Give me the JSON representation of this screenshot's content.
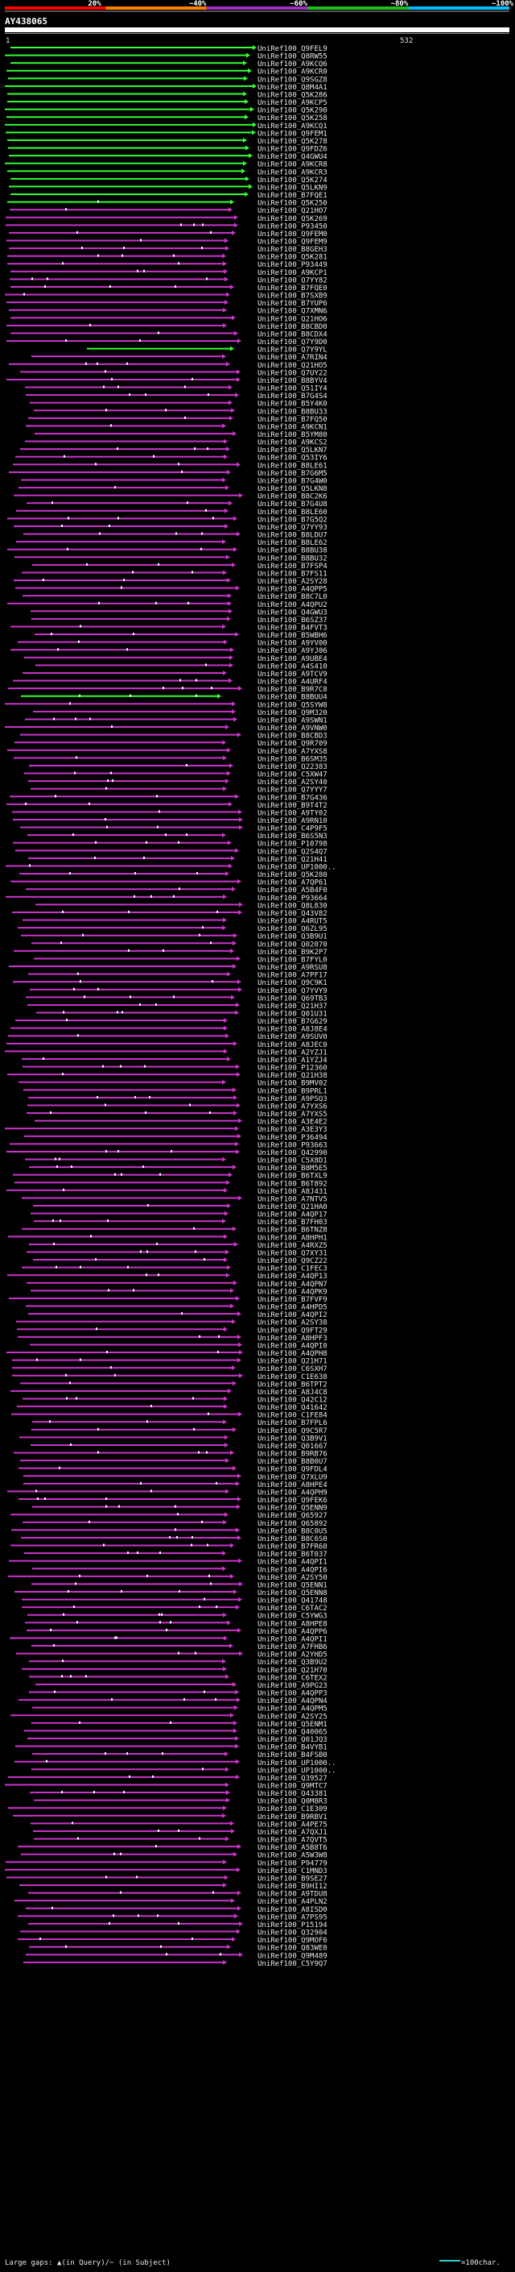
{
  "query": {
    "id": "AY438065",
    "start_label": "1",
    "end_label": "532"
  },
  "identity_scale": {
    "labels": [
      "20%",
      "~40%",
      "~60%",
      "~80%",
      "~100%"
    ],
    "colors": [
      "#ff0000",
      "#ff7f00",
      "#9f2fbf",
      "#1fbf1f",
      "#00bfff"
    ]
  },
  "alignment_colors": {
    "green": "#33ff33",
    "magenta": "#cc33cc",
    "white": "#ffffff"
  },
  "hits": [
    "UniRef100_Q9FEL9",
    "UniRef100_Q8RW55",
    "UniRef100_A9KCQ6",
    "UniRef100_A9KCR0",
    "UniRef100_Q9SGZ8",
    "UniRef100_Q8M4A1",
    "UniRef100_Q5K286",
    "UniRef100_A9KCP5",
    "UniRef100_Q5K290",
    "UniRef100_Q5K258",
    "UniRef100_A9KCQ1",
    "UniRef100_Q9FEM1",
    "UniRef100_Q5K278",
    "UniRef100_Q9FDZ6",
    "UniRef100_Q4GWU4",
    "UniRef100_A9KCR8",
    "UniRef100_A9KCR3",
    "UniRef100_Q5K274",
    "UniRef100_Q5LKN9",
    "UniRef100_B7FQE1",
    "UniRef100_Q5K250",
    "UniRef100_Q21HO7",
    "UniRef100_Q5K269",
    "UniRef100_P93450",
    "UniRef100_Q9FEM0",
    "UniRef100_Q9FEM9",
    "UniRef100_B8GEH3",
    "UniRef100_Q5K281",
    "UniRef100_P93449",
    "UniRef100_A9KCP1",
    "UniRef100_Q7YY82",
    "UniRef100_B7FQE0",
    "UniRef100_B7SXB9",
    "UniRef100_B7YUP6",
    "UniRef100_Q7XMN6",
    "UniRef100_Q21HO6",
    "UniRef100_B8CBD0",
    "UniRef100_B8CDX4",
    "UniRef100_Q7Y9D0",
    "UniRef100_Q7Y9YL",
    "UniRef100_A7RIN4",
    "UniRef100_Q21HO5",
    "UniRef100_Q7UY22",
    "UniRef100_B8BYV4",
    "UniRef100_Q51IY4",
    "UniRef100_B7G4S4",
    "UniRef100_B5Y4K0",
    "UniRef100_B8BU33",
    "UniRef100_B7FQ50",
    "UniRef100_A9KCN1",
    "UniRef100_B5YM80",
    "UniRef100_A9KCS2",
    "UniRef100_Q5LKN7",
    "UniRef100_Q53IY6",
    "UniRef100_B8LE61",
    "UniRef100_B7G6M5",
    "UniRef100_B7G4W0",
    "UniRef100_Q5LKN8",
    "UniRef100_B8C2K6",
    "UniRef100_B7G4U8",
    "UniRef100_B8LE60",
    "UniRef100_B7G5Q2",
    "UniRef100_Q7YY93",
    "UniRef100_B8LDU7",
    "UniRef100_B8LE62",
    "UniRef100_B8BU38",
    "UniRef100_B8BU32",
    "UniRef100_B7FSP4",
    "UniRef100_B7FS11",
    "UniRef100_A2SY28",
    "UniRef100_A4QPP5",
    "UniRef100_B8C7L0",
    "UniRef100_A4QPU2",
    "UniRef100_Q4GWU3",
    "UniRef100_B6SZ37",
    "UniRef100_B4FVT3",
    "UniRef100_B5WBH6",
    "UniRef100_A9YV00",
    "UniRef100_A9YJ06",
    "UniRef100_A9UBE4",
    "UniRef100_A4S410",
    "UniRef100_A9TCV9",
    "UniRef100_A4URF4",
    "UniRef100_B9R7C8",
    "UniRef100_B8BUU4",
    "UniRef100_Q5SYW8",
    "UniRef100_Q9M320",
    "UniRef100_A9SWN1",
    "UniRef100_A9VNW0",
    "UniRef100_B8CBD3",
    "UniRef100_Q9R709",
    "UniRef100_A7YXS8",
    "UniRef100_B6SM35",
    "UniRef100_Q22383",
    "UniRef100_C5XW47",
    "UniRef100_A2SY40",
    "UniRef100_Q7YYY7",
    "UniRef100_B7G436",
    "UniRef100_B9T4T2",
    "UniRef100_A9TY02",
    "UniRef100_A9RN10",
    "UniRef100_C4P9F5",
    "UniRef100_B6S5N3",
    "UniRef100_P10798",
    "UniRef100_Q2S4Q7",
    "UniRef100_Q21H41",
    "UniRef100_UP1000..",
    "UniRef100_Q5K280",
    "UniRef100_A7QP61",
    "UniRef100_A5B4F0",
    "UniRef100_P93664",
    "UniRef100_Q8L830",
    "UniRef100_Q43V82",
    "UniRef100_A4RUT5",
    "UniRef100_Q6ZL95",
    "UniRef100_Q3B9U1",
    "UniRef100_Q02070",
    "UniRef100_B9K2P7",
    "UniRef100_B7FYL0",
    "UniRef100_A9RSU8",
    "UniRef100_A7PF17",
    "UniRef100_Q9C9K1",
    "UniRef100_Q7YVY9",
    "UniRef100_Q69TB3",
    "UniRef100_Q21H37",
    "UniRef100_Q01U31",
    "UniRef100_B7G629",
    "UniRef100_A8J8E4",
    "UniRef100_A9SUV0",
    "UniRef100_A8JEC0",
    "UniRef100_A2YZJ1",
    "UniRef100_A1YZJ4",
    "UniRef100_P12360",
    "UniRef100_Q21H38",
    "UniRef100_B9MV02",
    "UniRef100_B9PRL1",
    "UniRef100_A9PSQ3",
    "UniRef100_A7YXS6",
    "UniRef100_A7YXS5",
    "UniRef100_A3E4E2",
    "UniRef100_A3E3Y3",
    "UniRef100_P36494",
    "UniRef100_P93663",
    "UniRef100_Q42990",
    "UniRef100_C5X8D1",
    "UniRef100_B8M5E5",
    "UniRef100_B6TXL9",
    "UniRef100_B6T892",
    "UniRef100_A8J431",
    "UniRef100_A7NTV5",
    "UniRef100_Q21HA0",
    "UniRef100_A4QP17",
    "UniRef100_B7FH03",
    "UniRef100_B6TNZ8",
    "UniRef100_A8HPH1",
    "UniRef100_A4RXZ5",
    "UniRef100_Q7XY31",
    "UniRef100_Q9CZ22",
    "UniRef100_C1FEC3",
    "UniRef100_A4QP13",
    "UniRef100_A4QPN7",
    "UniRef100_A4QPK9",
    "UniRef100_B7FVF9",
    "UniRef100_A4HPD5",
    "UniRef100_A4QPI2",
    "UniRef100_A2SY38",
    "UniRef100_Q9FT29",
    "UniRef100_A8HPF3",
    "UniRef100_A4QPI0",
    "UniRef100_A4QPH8",
    "UniRef100_Q21H71",
    "UniRef100_C6SXH7",
    "UniRef100_C1E638",
    "UniRef100_B6TPT2",
    "UniRef100_A8J4C8",
    "UniRef100_Q42C12",
    "UniRef100_Q41642",
    "UniRef100_C1FE84",
    "UniRef100_B7FPL6",
    "UniRef100_Q9C5R7",
    "UniRef100_Q3B9V1",
    "UniRef100_Q01667",
    "UniRef100_B9RB76",
    "UniRef100_B8B0U7",
    "UniRef100_Q9FDL4",
    "UniRef100_Q7XLU9",
    "UniRef100_A8HPE4",
    "UniRef100_A4QPH9",
    "UniRef100_Q9FEK6",
    "UniRef100_Q5ENN9",
    "UniRef100_Q65927",
    "UniRef100_Q65892",
    "UniRef100_B8C0U5",
    "UniRef100_B8C6S0",
    "UniRef100_B7FR60",
    "UniRef100_B6T037",
    "UniRef100_A4QPI1",
    "UniRef100_A4QPI6",
    "UniRef100_A2SY50",
    "UniRef100_Q5ENN1",
    "UniRef100_Q5ENN8",
    "UniRef100_Q41748",
    "UniRef100_C6TAC2",
    "UniRef100_C5YWG3",
    "UniRef100_A8HPE8",
    "UniRef100_A4QPP6",
    "UniRef100_A4QPI1",
    "UniRef100_A7FHB6",
    "UniRef100_A2YHD5",
    "UniRef100_Q3B9U2",
    "UniRef100_Q21H70",
    "UniRef100_C6TEX2",
    "UniRef100_A9PG23",
    "UniRef100_A4QPP3",
    "UniRef100_A4QPN4",
    "UniRef100_A4QPM5",
    "UniRef100_A2SY25",
    "UniRef100_Q5ENM1",
    "UniRef100_Q40065",
    "UniRef100_Q01JQ3",
    "UniRef100_B4VYB1",
    "UniRef100_B4FSB0",
    "UniRef100_UP1000..",
    "UniRef100_UP1000..",
    "UniRef100_Q39527",
    "UniRef100_Q9MTC7",
    "UniRef100_Q43381",
    "UniRef100_Q0M8R3",
    "UniRef100_C1E309",
    "UniRef100_B9RBV1",
    "UniRef100_A4PE75",
    "UniRef100_A7QXJ1",
    "UniRef100_A7QVT5",
    "UniRef100_A5B8T6",
    "UniRef100_A5W3W8",
    "UniRef100_P94779",
    "UniRef100_C1MND3",
    "UniRef100_B9SE27",
    "UniRef100_B9HI12",
    "UniRef100_A9TDU8",
    "UniRef100_A4PLN2",
    "UniRef100_A8ISD0",
    "UniRef100_A7PS95",
    "UniRef100_P15194",
    "UniRef100_Q32904",
    "UniRef100_Q9MOF6",
    "UniRef100_Q83WE0",
    "UniRef100_Q9M489",
    "UniRef100_C5Y9Q7"
  ],
  "footer": {
    "gap_legend": "Large gaps: ▲(in Query)/~ (in Subject)",
    "scale_legend": "=100char."
  }
}
